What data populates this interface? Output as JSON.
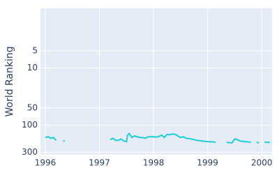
{
  "chart_data": {
    "type": "line",
    "y_label": "World Ranking",
    "x": [
      1996.0,
      1996.05,
      1996.1,
      1996.15,
      1996.2,
      1996.25,
      1996.33,
      1996.36,
      1996.5,
      1997.2,
      1997.25,
      1997.3,
      1997.35,
      1997.4,
      1997.45,
      1997.5,
      1997.52,
      1997.55,
      1997.6,
      1997.65,
      1997.7,
      1997.75,
      1997.8,
      1997.85,
      1997.9,
      1997.95,
      1998.0,
      1998.05,
      1998.1,
      1998.15,
      1998.2,
      1998.25,
      1998.3,
      1998.35,
      1998.4,
      1998.45,
      1998.5,
      1998.55,
      1998.6,
      1998.7,
      1998.8,
      1998.9,
      1999.0,
      1999.1,
      1999.15,
      1999.25,
      1999.35,
      1999.45,
      1999.5,
      1999.55,
      1999.6,
      1999.7,
      1999.8,
      1999.85,
      1999.9,
      1999.95,
      2000.0,
      2000.05,
      2000.1,
      2000.15
    ],
    "series": [
      {
        "name": "World Ranking",
        "color": "#1ccfd6",
        "values": [
          165,
          160,
          170,
          165,
          185,
          null,
          190,
          190,
          null,
          180,
          170,
          185,
          185,
          175,
          190,
          195,
          150,
          140,
          165,
          155,
          160,
          165,
          165,
          170,
          160,
          160,
          160,
          162,
          158,
          150,
          165,
          145,
          148,
          143,
          145,
          155,
          165,
          160,
          170,
          175,
          185,
          190,
          195,
          197,
          200,
          null,
          200,
          205,
          175,
          180,
          190,
          195,
          200,
          null,
          200,
          205,
          null,
          200,
          200,
          200
        ]
      }
    ],
    "xlim": [
      1995.91,
      2000.19
    ],
    "xticks": [
      1996,
      1997,
      1998,
      1999,
      2000
    ],
    "ylim": [
      0.9,
      330
    ],
    "y_log": true,
    "y_inverted": true,
    "yticks": [
      300,
      100,
      50,
      10,
      5
    ],
    "grid": true
  }
}
